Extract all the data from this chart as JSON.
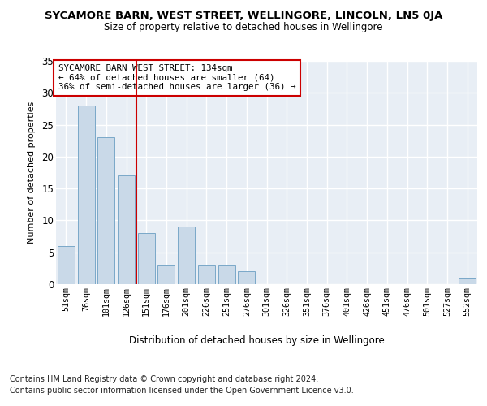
{
  "title1": "SYCAMORE BARN, WEST STREET, WELLINGORE, LINCOLN, LN5 0JA",
  "title2": "Size of property relative to detached houses in Wellingore",
  "xlabel": "Distribution of detached houses by size in Wellingore",
  "ylabel": "Number of detached properties",
  "categories": [
    "51sqm",
    "76sqm",
    "101sqm",
    "126sqm",
    "151sqm",
    "176sqm",
    "201sqm",
    "226sqm",
    "251sqm",
    "276sqm",
    "301sqm",
    "326sqm",
    "351sqm",
    "376sqm",
    "401sqm",
    "426sqm",
    "451sqm",
    "476sqm",
    "501sqm",
    "527sqm",
    "552sqm"
  ],
  "values": [
    6,
    28,
    23,
    17,
    8,
    3,
    9,
    3,
    3,
    2,
    0,
    0,
    0,
    0,
    0,
    0,
    0,
    0,
    0,
    0,
    1
  ],
  "bar_color": "#c9d9e8",
  "bar_edge_color": "#7aa8c8",
  "annotation_title": "SYCAMORE BARN WEST STREET: 134sqm",
  "annotation_line1": "← 64% of detached houses are smaller (64)",
  "annotation_line2": "36% of semi-detached houses are larger (36) →",
  "vline_position": 3.5,
  "vline_color": "#cc0000",
  "ylim": [
    0,
    35
  ],
  "yticks": [
    0,
    5,
    10,
    15,
    20,
    25,
    30,
    35
  ],
  "bg_color": "#e8eef5",
  "grid_color": "#ffffff",
  "footnote1": "Contains HM Land Registry data © Crown copyright and database right 2024.",
  "footnote2": "Contains public sector information licensed under the Open Government Licence v3.0."
}
